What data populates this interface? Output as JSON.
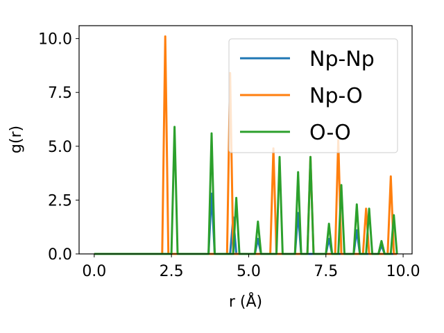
{
  "chart_data": {
    "type": "line",
    "xlabel": "r (Å)",
    "ylabel": "g(r)",
    "xlim": [
      -0.49,
      10.29
    ],
    "ylim": [
      0,
      10.6
    ],
    "xticks": [
      0.0,
      2.5,
      5.0,
      7.5,
      10.0
    ],
    "xtick_labels": [
      "0.0",
      "2.5",
      "5.0",
      "7.5",
      "10.0"
    ],
    "yticks": [
      0.0,
      2.5,
      5.0,
      7.5,
      10.0
    ],
    "ytick_labels": [
      "0.0",
      "2.5",
      "5.0",
      "7.5",
      "10.0"
    ],
    "grid": false,
    "legend_position": "upper-right",
    "series": [
      {
        "name": "Np-Np",
        "color": "#1f77b4",
        "x": [
          0,
          3.7,
          3.8,
          3.9,
          4.4,
          4.5,
          4.6,
          5.2,
          5.3,
          5.4,
          6.5,
          6.6,
          6.7,
          7.5,
          7.6,
          7.7,
          8.4,
          8.5,
          8.6,
          9.2,
          9.3,
          9.4,
          9.8
        ],
        "values": [
          0,
          0,
          2.8,
          0,
          0,
          1.7,
          0,
          0,
          0.7,
          0,
          0,
          1.9,
          0,
          0,
          0.7,
          0,
          0,
          1.1,
          0,
          0,
          0.4,
          0,
          0
        ]
      },
      {
        "name": "Np-O",
        "color": "#ff7f0e",
        "x": [
          0,
          2.2,
          2.3,
          2.4,
          4.3,
          4.4,
          4.5,
          5.7,
          5.8,
          5.9,
          6.9,
          7.0,
          7.1,
          7.8,
          7.9,
          8.0,
          8.7,
          8.8,
          8.9,
          9.5,
          9.6,
          9.7,
          9.8
        ],
        "values": [
          0,
          0,
          10.1,
          0,
          0,
          8.4,
          0,
          0,
          4.9,
          0,
          0,
          4.5,
          0,
          0,
          5.3,
          0,
          0,
          2.1,
          0,
          0,
          3.6,
          0,
          0
        ]
      },
      {
        "name": "O-O",
        "color": "#2ca02c",
        "x": [
          0,
          2.5,
          2.6,
          2.7,
          3.7,
          3.8,
          3.9,
          4.5,
          4.6,
          4.7,
          5.2,
          5.3,
          5.4,
          5.9,
          6.0,
          6.1,
          6.5,
          6.6,
          6.7,
          6.9,
          7.0,
          7.1,
          7.5,
          7.6,
          7.7,
          7.9,
          8.0,
          8.1,
          8.4,
          8.5,
          8.6,
          8.8,
          8.9,
          9.0,
          9.2,
          9.3,
          9.4,
          9.6,
          9.7,
          9.8
        ],
        "values": [
          0,
          0,
          5.9,
          0,
          0,
          5.6,
          0,
          0,
          2.6,
          0,
          0,
          1.5,
          0,
          0,
          4.5,
          0,
          0,
          3.8,
          0,
          0,
          4.5,
          0,
          0,
          1.4,
          0,
          0,
          3.2,
          0,
          0,
          2.3,
          0,
          0,
          2.1,
          0,
          0,
          0.6,
          0,
          0,
          1.8,
          0
        ]
      }
    ]
  }
}
